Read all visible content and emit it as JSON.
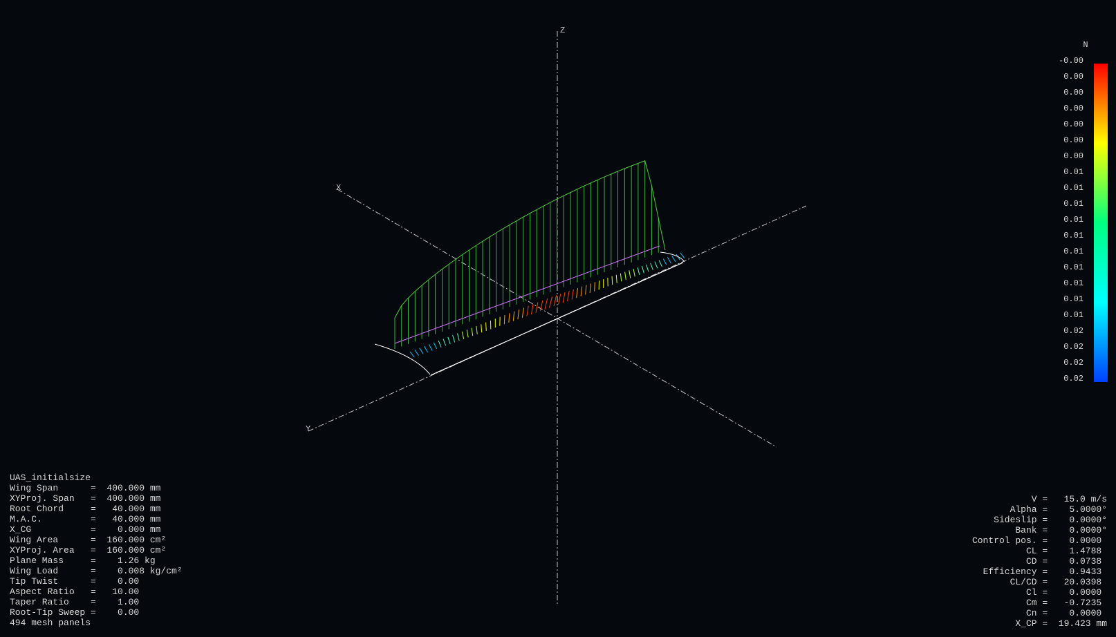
{
  "axes": {
    "x": "X",
    "y": "Y",
    "z": "Z"
  },
  "legend": {
    "unit": "N",
    "labels": [
      "-0.00",
      "0.00",
      "0.00",
      "0.00",
      "0.00",
      "0.00",
      "0.00",
      "0.01",
      "0.01",
      "0.01",
      "0.01",
      "0.01",
      "0.01",
      "0.01",
      "0.01",
      "0.01",
      "0.01",
      "0.02",
      "0.02",
      "0.02",
      "0.02"
    ]
  },
  "left_panel": {
    "title": "UAS_initialsize",
    "lines": [
      "Wing Span      =  400.000 mm",
      "XYProj. Span   =  400.000 mm",
      "Root Chord     =   40.000 mm",
      "M.A.C.         =   40.000 mm",
      "X_CG           =    0.000 mm",
      "Wing Area      =  160.000 cm²",
      "XYProj. Area   =  160.000 cm²",
      "Plane Mass     =    1.26 kg",
      "Wing Load      =    0.008 kg/cm²",
      "Tip Twist      =    0.00",
      "Aspect Ratio   =   10.00",
      "Taper Ratio    =    1.00",
      "Root-Tip Sweep =    0.00",
      "494 mesh panels"
    ]
  },
  "right_panel": {
    "lines": [
      "V =   15.0 m/s",
      "Alpha =    5.0000°",
      "Sideslip =    0.0000°",
      "Bank =    0.0000°",
      "Control pos. =    0.0000 ",
      "CL =    1.4788 ",
      "CD =    0.0738 ",
      "Efficiency =    0.9433 ",
      "CL/CD =   20.0398 ",
      "Cl =    0.0000 ",
      "Cm =   -0.7235 ",
      "Cn =    0.0000 ",
      "X_CP =  19.423 mm"
    ]
  }
}
